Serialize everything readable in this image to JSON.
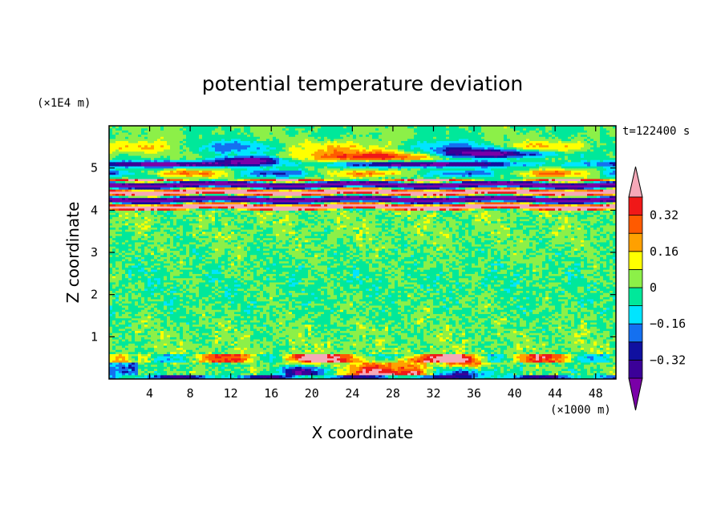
{
  "chart_data": {
    "type": "heatmap",
    "title": "potential temperature deviation",
    "time_label": "t=122400 s",
    "xlabel": "X coordinate",
    "ylabel": "Z coordinate",
    "x_unit": "(×1000 m)",
    "y_unit": "(×1E4 m)",
    "xlim": [
      0,
      50
    ],
    "ylim": [
      0,
      6
    ],
    "x_ticks": [
      "4",
      "8",
      "12",
      "16",
      "20",
      "24",
      "28",
      "32",
      "36",
      "40",
      "44",
      "48"
    ],
    "x_tick_values": [
      4,
      8,
      12,
      16,
      20,
      24,
      28,
      32,
      36,
      40,
      44,
      48
    ],
    "y_ticks": [
      "1",
      "2",
      "3",
      "4",
      "5"
    ],
    "y_tick_values": [
      1,
      2,
      3,
      4,
      5
    ],
    "colorbar": {
      "levels": [
        -0.4,
        -0.32,
        -0.24,
        -0.16,
        -0.08,
        0,
        0.08,
        0.16,
        0.24,
        0.32,
        0.4
      ],
      "tick_labels": [
        "0.32",
        "0.16",
        "0",
        "−0.16",
        "−0.32"
      ],
      "tick_values": [
        0.32,
        0.16,
        0,
        -0.16,
        -0.32
      ],
      "colors": [
        "#7a00a8",
        "#3b0098",
        "#1010a0",
        "#1470f0",
        "#00e5ff",
        "#00e89a",
        "#8cf048",
        "#ffff00",
        "#ffa000",
        "#ff5a00",
        "#f01818",
        "#f5a8b8"
      ],
      "extend": "both"
    },
    "bands": [
      {
        "z0": 0.0,
        "z1": 0.6,
        "pattern": "boundary layer: strong warm plumes near x=24-30, cold pockets"
      },
      {
        "z0": 0.6,
        "z1": 4.0,
        "pattern": "weak fluctuations near 0"
      },
      {
        "z0": 4.0,
        "z1": 4.75,
        "pattern": "strong alternating warm/cold layers"
      },
      {
        "z0": 4.75,
        "z1": 6.0,
        "pattern": "wave structures with warm/cold lenses"
      }
    ]
  }
}
